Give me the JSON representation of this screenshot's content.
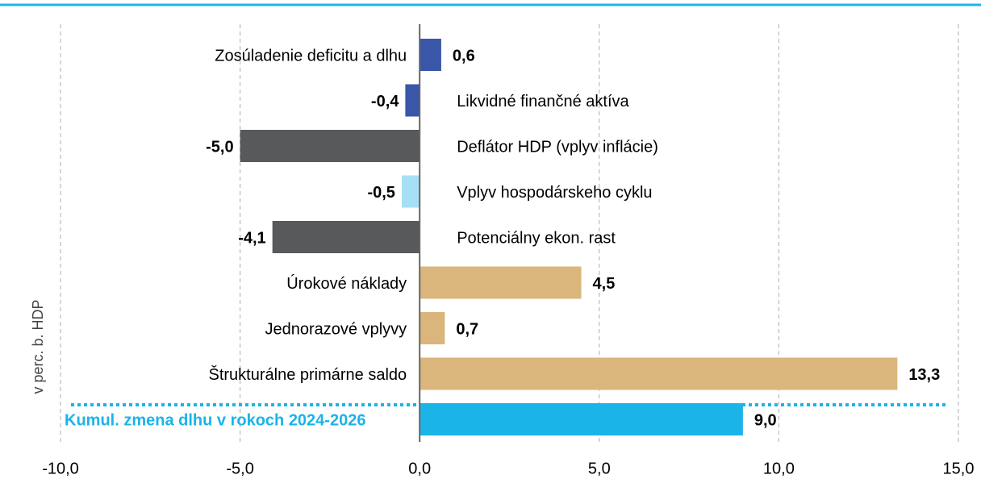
{
  "chart_data": {
    "type": "hbar",
    "y_axis_label": "v perc. b. HDP",
    "categories": [
      "Zosúladenie deficitu a dlhu",
      "Likvidné finančné aktíva",
      "Deflátor HDP (vplyv inflácie)",
      "Vplyv hospodárskeho cyklu",
      "Potenciálny ekon. rast",
      "Úrokové náklady",
      "Jednorazové vplyvy",
      "Štrukturálne primárne saldo",
      "Kumul. zmena dlhu v rokoch 2024-2026"
    ],
    "values": [
      0.6,
      -0.4,
      -5.0,
      -0.5,
      -4.1,
      4.5,
      0.7,
      13.3,
      9.0
    ],
    "value_labels": [
      "0,6",
      "-0,4",
      "-5,0",
      "-0,5",
      "-4,1",
      "4,5",
      "0,7",
      "13,3",
      "9,0"
    ],
    "colors": [
      "#3a56a8",
      "#3a56a8",
      "#58595b",
      "#a5e0f5",
      "#58595b",
      "#dab57c",
      "#dab57c",
      "#dab57c",
      "#1ab4e8"
    ],
    "xlim": [
      -10,
      15
    ],
    "xticks": [
      {
        "value": -10,
        "label": "-10,0"
      },
      {
        "value": -5,
        "label": "-5,0"
      },
      {
        "value": 0,
        "label": "0,0"
      },
      {
        "value": 5,
        "label": "5,0"
      },
      {
        "value": 10,
        "label": "10,0"
      },
      {
        "value": 15,
        "label": "15,0"
      }
    ],
    "grid": true
  }
}
